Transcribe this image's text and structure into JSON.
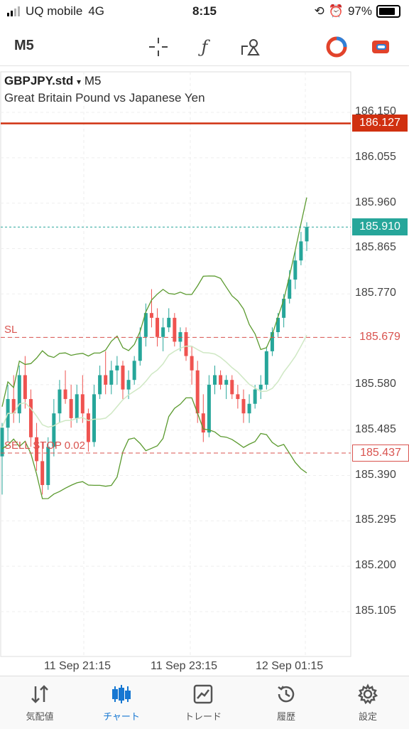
{
  "status_bar": {
    "carrier": "UQ mobile",
    "network": "4G",
    "time": "8:15",
    "battery": "97%"
  },
  "toolbar": {
    "timeframe": "M5",
    "icons": [
      "crosshair-icon",
      "indicator-f-icon",
      "objects-icon",
      "trade-buttons-icon",
      "account-icon"
    ]
  },
  "chart_header": {
    "symbol": "GBPJPY.std",
    "dropdown": "▾",
    "timeframe": "M5",
    "description": "Great Britain Pound vs Japanese Yen"
  },
  "chart_data": {
    "type": "candlestick",
    "price_axis": [
      "186.150",
      "186.055",
      "185.960",
      "185.865",
      "185.770",
      "185.679",
      "185.580",
      "185.485",
      "185.390",
      "185.295",
      "185.200",
      "185.105"
    ],
    "time_axis": [
      "11 Sep 21:15",
      "11 Sep 23:15",
      "12 Sep 01:15"
    ],
    "bid_price": "185.910",
    "levels": [
      {
        "label": "",
        "price": "186.127",
        "color": "#d03010"
      },
      {
        "label": "SL",
        "price": "185.679",
        "color": "#d9534f"
      },
      {
        "label": "SELL STOP 0.02",
        "price": "185.437",
        "color": "#d9534f"
      }
    ],
    "candles": [
      [
        185.43,
        185.5,
        185.35,
        185.49
      ],
      [
        185.49,
        185.58,
        185.46,
        185.55
      ],
      [
        185.55,
        185.6,
        185.5,
        185.52
      ],
      [
        185.52,
        185.62,
        185.5,
        185.6
      ],
      [
        185.6,
        185.64,
        185.53,
        185.55
      ],
      [
        185.55,
        185.57,
        185.45,
        185.47
      ],
      [
        185.47,
        185.5,
        185.4,
        185.42
      ],
      [
        185.42,
        185.46,
        185.35,
        185.37
      ],
      [
        185.37,
        185.47,
        185.36,
        185.45
      ],
      [
        185.45,
        185.55,
        185.43,
        185.52
      ],
      [
        185.52,
        185.59,
        185.5,
        185.57
      ],
      [
        185.57,
        185.61,
        185.54,
        185.55
      ],
      [
        185.55,
        185.58,
        185.49,
        185.51
      ],
      [
        185.51,
        185.58,
        185.5,
        185.56
      ],
      [
        185.56,
        185.6,
        185.5,
        185.52
      ],
      [
        185.52,
        185.53,
        185.44,
        185.46
      ],
      [
        185.46,
        185.58,
        185.45,
        185.56
      ],
      [
        185.56,
        185.62,
        185.55,
        185.6
      ],
      [
        185.6,
        185.65,
        185.56,
        185.58
      ],
      [
        185.58,
        185.63,
        185.56,
        185.61
      ],
      [
        185.61,
        185.64,
        185.58,
        185.62
      ],
      [
        185.62,
        185.63,
        185.55,
        185.57
      ],
      [
        185.57,
        185.61,
        185.55,
        185.59
      ],
      [
        185.59,
        185.64,
        185.58,
        185.63
      ],
      [
        185.63,
        185.7,
        185.62,
        185.68
      ],
      [
        185.68,
        185.75,
        185.66,
        185.73
      ],
      [
        185.73,
        185.78,
        185.7,
        185.72
      ],
      [
        185.72,
        185.74,
        185.66,
        185.68
      ],
      [
        185.68,
        185.72,
        185.65,
        185.7
      ],
      [
        185.7,
        185.74,
        185.69,
        185.72
      ],
      [
        185.72,
        185.73,
        185.66,
        185.67
      ],
      [
        185.67,
        185.7,
        185.65,
        185.69
      ],
      [
        185.69,
        185.7,
        185.63,
        185.64
      ],
      [
        185.64,
        185.66,
        185.58,
        185.61
      ],
      [
        185.61,
        185.63,
        185.5,
        185.52
      ],
      [
        185.52,
        185.56,
        185.46,
        185.48
      ],
      [
        185.48,
        185.6,
        185.47,
        185.58
      ],
      [
        185.58,
        185.62,
        185.56,
        185.6
      ],
      [
        185.6,
        185.61,
        185.57,
        185.58
      ],
      [
        185.58,
        185.6,
        185.55,
        185.59
      ],
      [
        185.59,
        185.6,
        185.55,
        185.56
      ],
      [
        185.56,
        185.58,
        185.53,
        185.55
      ],
      [
        185.55,
        185.57,
        185.5,
        185.52
      ],
      [
        185.52,
        185.56,
        185.5,
        185.54
      ],
      [
        185.54,
        185.58,
        185.53,
        185.57
      ],
      [
        185.57,
        185.6,
        185.55,
        185.58
      ],
      [
        185.58,
        185.66,
        185.57,
        185.65
      ],
      [
        185.65,
        185.7,
        185.64,
        185.69
      ],
      [
        185.69,
        185.73,
        185.68,
        185.72
      ],
      [
        185.72,
        185.77,
        185.7,
        185.76
      ],
      [
        185.76,
        185.82,
        185.75,
        185.8
      ],
      [
        185.8,
        185.86,
        185.78,
        185.84
      ],
      [
        185.84,
        185.9,
        185.83,
        185.88
      ],
      [
        185.88,
        185.92,
        185.86,
        185.91
      ]
    ],
    "bollinger": {
      "upper_color": "#5b9a2f",
      "middle_color": "#cfe8c4",
      "lower_color": "#5b9a2f"
    }
  },
  "tabbar": {
    "tabs": [
      {
        "label": "気配値",
        "icon": "quotes-icon",
        "active": false
      },
      {
        "label": "チャート",
        "icon": "chart-icon",
        "active": true
      },
      {
        "label": "トレード",
        "icon": "trade-icon",
        "active": false
      },
      {
        "label": "履歴",
        "icon": "history-icon",
        "active": false
      },
      {
        "label": "設定",
        "icon": "settings-icon",
        "active": false
      }
    ]
  }
}
